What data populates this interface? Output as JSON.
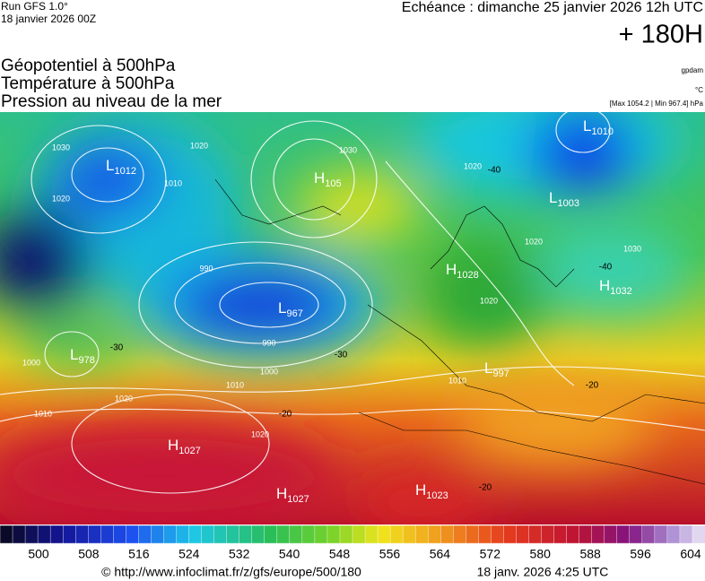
{
  "header": {
    "run": "Run GFS 1.0°",
    "run_date": "18 janvier 2026 00Z",
    "forecast": "Echéance : dimanche 25 janvier 2026 12h UTC",
    "lead": "+ 180H"
  },
  "titles": [
    "Géopotentiel à 500hPa",
    "Température à 500hPa",
    "Pression au niveau de la mer"
  ],
  "units": {
    "geopotential": "gpdam",
    "temperature": "°C",
    "pressure": "[Max 1054.2 | Min 967.4] hPa"
  },
  "centers": [
    {
      "symbol": "L",
      "value": "1012"
    },
    {
      "symbol": "H",
      "value": "105"
    },
    {
      "symbol": "L",
      "value": "1010"
    },
    {
      "symbol": "L",
      "value": "1003"
    },
    {
      "symbol": "H",
      "value": "1028"
    },
    {
      "symbol": "H",
      "value": "1032"
    },
    {
      "symbol": "L",
      "value": "967"
    },
    {
      "symbol": "L",
      "value": "978"
    },
    {
      "symbol": "L",
      "value": "997"
    },
    {
      "symbol": "H",
      "value": "1027"
    },
    {
      "symbol": "H",
      "value": "1027"
    },
    {
      "symbol": "H",
      "value": "1023"
    }
  ],
  "isobar_labels": [
    "1030",
    "1020",
    "1020",
    "1010",
    "1030",
    "990",
    "990",
    "1000",
    "1010",
    "1020",
    "1020",
    "1010",
    "1000",
    "1020",
    "1020",
    "1030",
    "1020",
    "1010"
  ],
  "temperature_labels": [
    "-40",
    "-30",
    "-20",
    "-20",
    "-40",
    "-30",
    "-20"
  ],
  "colorbar": {
    "labels": [
      500,
      508,
      516,
      524,
      532,
      540,
      548,
      556,
      564,
      572,
      580,
      588,
      596,
      604
    ]
  },
  "footer": {
    "source": "© http://www.infoclimat.fr/z/gfs/europe/500/180",
    "generated": "18 janv. 2026  4:25 UTC"
  }
}
